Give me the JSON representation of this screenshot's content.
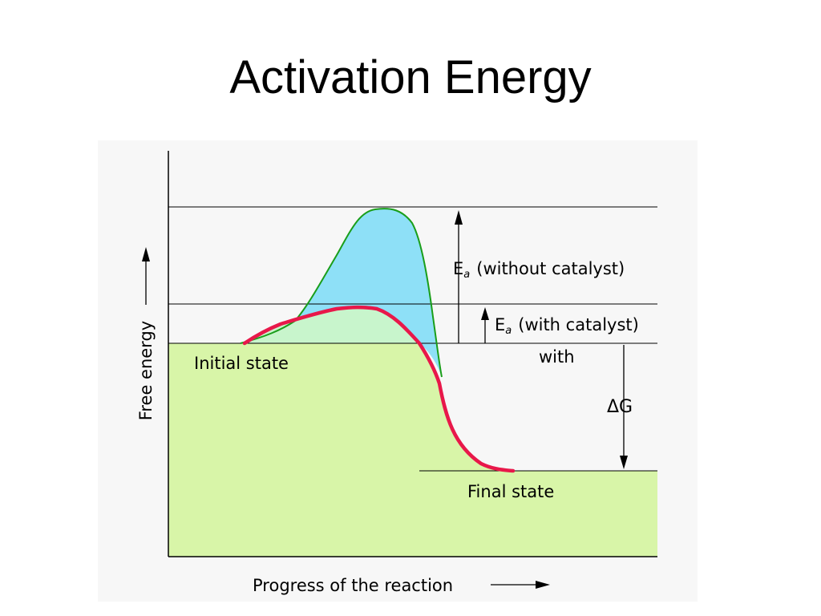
{
  "slide": {
    "title": "Activation Energy"
  },
  "diagram": {
    "y_axis_label": "Free energy",
    "x_axis_label": "Progress of the reaction",
    "initial_state_label": "Initial state",
    "final_state_label": "Final state",
    "ea_without": {
      "symbol": "E",
      "subscript": "a",
      "text": "(without catalyst)"
    },
    "ea_with": {
      "symbol": "E",
      "subscript": "a",
      "text": "(with catalyst)"
    },
    "stray_text": "with",
    "delta_g": "ΔG",
    "colors": {
      "panel_bg": "#f7f7f7",
      "state_fill": "#d8f5a8",
      "uncatalyzed_fill": "#8ee0f7",
      "catalyzed_fill": "#c8f5cc",
      "uncatalyzed_curve": "#1a9e1a",
      "catalyzed_curve": "#e8184a",
      "lines": "#000000"
    }
  }
}
